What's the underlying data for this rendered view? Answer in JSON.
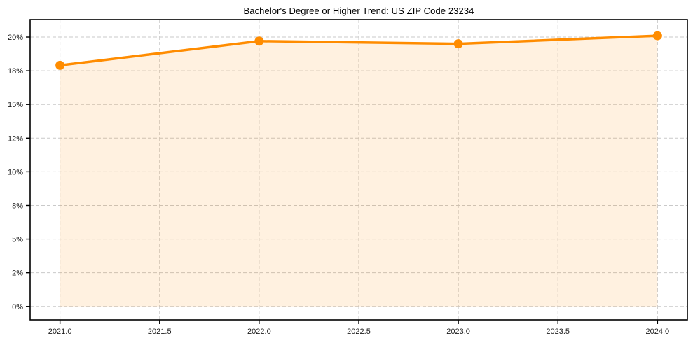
{
  "chart_data": {
    "type": "line",
    "title": "Bachelor's Degree or Higher Trend: US ZIP Code 23234",
    "xlabel": "",
    "ylabel": "",
    "x": [
      2021,
      2022,
      2023,
      2024
    ],
    "values": [
      17.9,
      19.7,
      19.5,
      20.1
    ],
    "xlim": [
      2020.85,
      2024.15
    ],
    "ylim": [
      -1,
      21.3
    ],
    "x_ticks": [
      {
        "value": 2021.0,
        "label": "2021.0"
      },
      {
        "value": 2021.5,
        "label": "2021.5"
      },
      {
        "value": 2022.0,
        "label": "2022.0"
      },
      {
        "value": 2022.5,
        "label": "2022.5"
      },
      {
        "value": 2023.0,
        "label": "2023.0"
      },
      {
        "value": 2023.5,
        "label": "2023.5"
      },
      {
        "value": 2024.0,
        "label": "2024.0"
      }
    ],
    "y_ticks": [
      {
        "value": 0,
        "label": "0%"
      },
      {
        "value": 2.5,
        "label": "2%"
      },
      {
        "value": 5,
        "label": "5%"
      },
      {
        "value": 7.5,
        "label": "8%"
      },
      {
        "value": 10,
        "label": "10%"
      },
      {
        "value": 12.5,
        "label": "12%"
      },
      {
        "value": 15,
        "label": "15%"
      },
      {
        "value": 17.5,
        "label": "18%"
      },
      {
        "value": 20,
        "label": "20%"
      }
    ],
    "grid": true,
    "grid_style": "dashed",
    "legend_position": "none",
    "area_fill_to": 0,
    "colors": {
      "line": "#ff8c00",
      "marker": "#ff8c00",
      "area_fill": "rgba(255,140,0,0.12)",
      "grid": "#c9c9c9",
      "spine": "#000000",
      "tick_label": "#1a1a1a",
      "title": "#000000",
      "background": "#ffffff"
    }
  }
}
